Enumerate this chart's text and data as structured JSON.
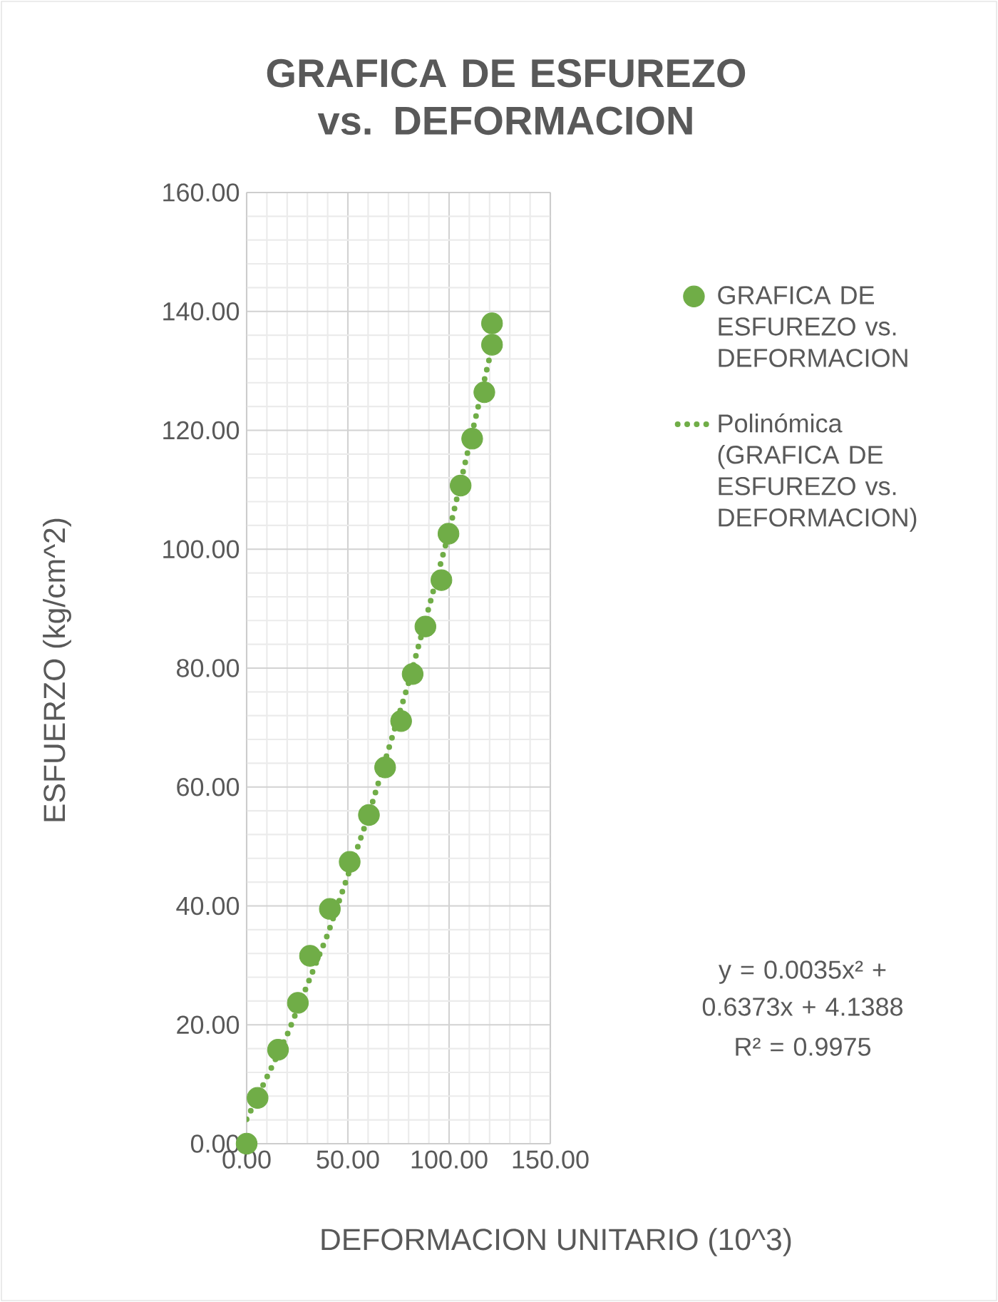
{
  "chart_data": {
    "type": "scatter",
    "title": "GRAFICA DE ESFUREZO vs. DEFORMACION",
    "xlabel": "DEFORMACION UNITARIO (10^3)",
    "ylabel": "ESFUERZO (kg/cm^2)",
    "xlim": [
      0,
      150
    ],
    "ylim": [
      0,
      160
    ],
    "xticks": [
      {
        "value": 0,
        "label": "0.00"
      },
      {
        "value": 50,
        "label": "50.00"
      },
      {
        "value": 100,
        "label": "100.00"
      },
      {
        "value": 150,
        "label": "150.00"
      }
    ],
    "yticks": [
      {
        "value": 0,
        "label": "0.00"
      },
      {
        "value": 20,
        "label": "20.00"
      },
      {
        "value": 40,
        "label": "40.00"
      },
      {
        "value": 60,
        "label": "60.00"
      },
      {
        "value": 80,
        "label": "80.00"
      },
      {
        "value": 100,
        "label": "100.00"
      },
      {
        "value": 120,
        "label": "120.00"
      },
      {
        "value": 140,
        "label": "140.00"
      },
      {
        "value": 160,
        "label": "160.00"
      }
    ],
    "grid": true,
    "legend": "right",
    "series": [
      {
        "name": "GRAFICA DE ESFUREZO vs. DEFORMACION",
        "marker": "circle",
        "color": "#70ad47",
        "x": [
          0,
          5.4,
          15.5,
          25.3,
          31.3,
          41.1,
          50.9,
          60.4,
          68.4,
          76.3,
          82.0,
          88.3,
          96.2,
          99.7,
          105.7,
          111.4,
          117.4,
          121.2,
          121.2
        ],
        "values": [
          0,
          7.7,
          15.8,
          23.7,
          31.6,
          39.5,
          47.4,
          55.3,
          63.3,
          71.1,
          79.0,
          87.0,
          94.8,
          102.6,
          110.7,
          118.6,
          126.4,
          134.4,
          138.0
        ]
      },
      {
        "name": "Polinómica (GRAFICA DE ESFUREZO vs. DEFORMACION)",
        "type": "line",
        "marker": "none",
        "line_style": "dotted",
        "color": "#70ad47",
        "x": [
          0,
          20,
          40,
          60,
          80,
          100,
          121.2
        ],
        "values": [
          4.1,
          18.3,
          35.2,
          55.0,
          77.5,
          102.9,
          134.0
        ]
      }
    ],
    "annotations": [
      "y = 0.0035x² + 0.6373x + 4.1388",
      "R² = 0.9975"
    ]
  }
}
